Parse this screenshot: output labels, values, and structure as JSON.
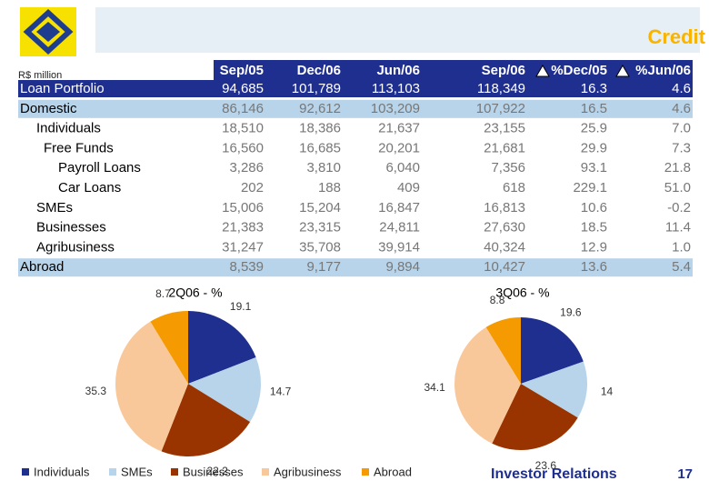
{
  "header": {
    "title": "Credit",
    "unit": "R$ million"
  },
  "table": {
    "header": [
      "Sep/05",
      "Dec/06",
      "Jun/06",
      "Sep/06",
      "%Dec/05",
      "%Jun/06"
    ],
    "rows": [
      {
        "label": "Loan Portfolio",
        "values": [
          "94,685",
          "101,789",
          "113,103",
          "118,349",
          "16.3",
          "4.6"
        ]
      },
      {
        "label": "Domestic",
        "values": [
          "86,146",
          "92,612",
          "103,209",
          "107,922",
          "16.5",
          "4.6"
        ]
      },
      {
        "label": "Individuals",
        "values": [
          "18,510",
          "18,386",
          "21,637",
          "23,155",
          "25.9",
          "7.0"
        ]
      },
      {
        "label": "Free Funds",
        "values": [
          "16,560",
          "16,685",
          "20,201",
          "21,681",
          "29.9",
          "7.3"
        ]
      },
      {
        "label": "Payroll Loans",
        "values": [
          "3,286",
          "3,810",
          "6,040",
          "7,356",
          "93.1",
          "21.8"
        ]
      },
      {
        "label": "Car Loans",
        "values": [
          "202",
          "188",
          "409",
          "618",
          "229.1",
          "51.0"
        ]
      },
      {
        "label": "SMEs",
        "values": [
          "15,006",
          "15,204",
          "16,847",
          "16,813",
          "10.6",
          "-0.2"
        ]
      },
      {
        "label": "Businesses",
        "values": [
          "21,383",
          "23,315",
          "24,811",
          "27,630",
          "18.5",
          "11.4"
        ]
      },
      {
        "label": "Agribusiness",
        "values": [
          "31,247",
          "35,708",
          "39,914",
          "40,324",
          "12.9",
          "1.0"
        ]
      },
      {
        "label": "Abroad",
        "values": [
          "8,539",
          "9,177",
          "9,894",
          "10,427",
          "13.6",
          "5.4"
        ]
      }
    ]
  },
  "chart_data": {
    "type": "pie",
    "categories": [
      "Individuals",
      "SMEs",
      "Businesses",
      "Agribusiness",
      "Abroad"
    ],
    "colors": [
      "#1f2f8f",
      "#b8d4ea",
      "#993300",
      "#f9c89a",
      "#f59a00"
    ],
    "series": [
      {
        "name": "2Q06 - %",
        "values": [
          19.1,
          14.7,
          22.2,
          35.3,
          8.7
        ]
      },
      {
        "name": "3Q06 - %",
        "values": [
          19.6,
          14.0,
          23.6,
          34.1,
          8.8
        ]
      }
    ]
  },
  "footer": {
    "text": "Investor Relations",
    "page": "17"
  }
}
